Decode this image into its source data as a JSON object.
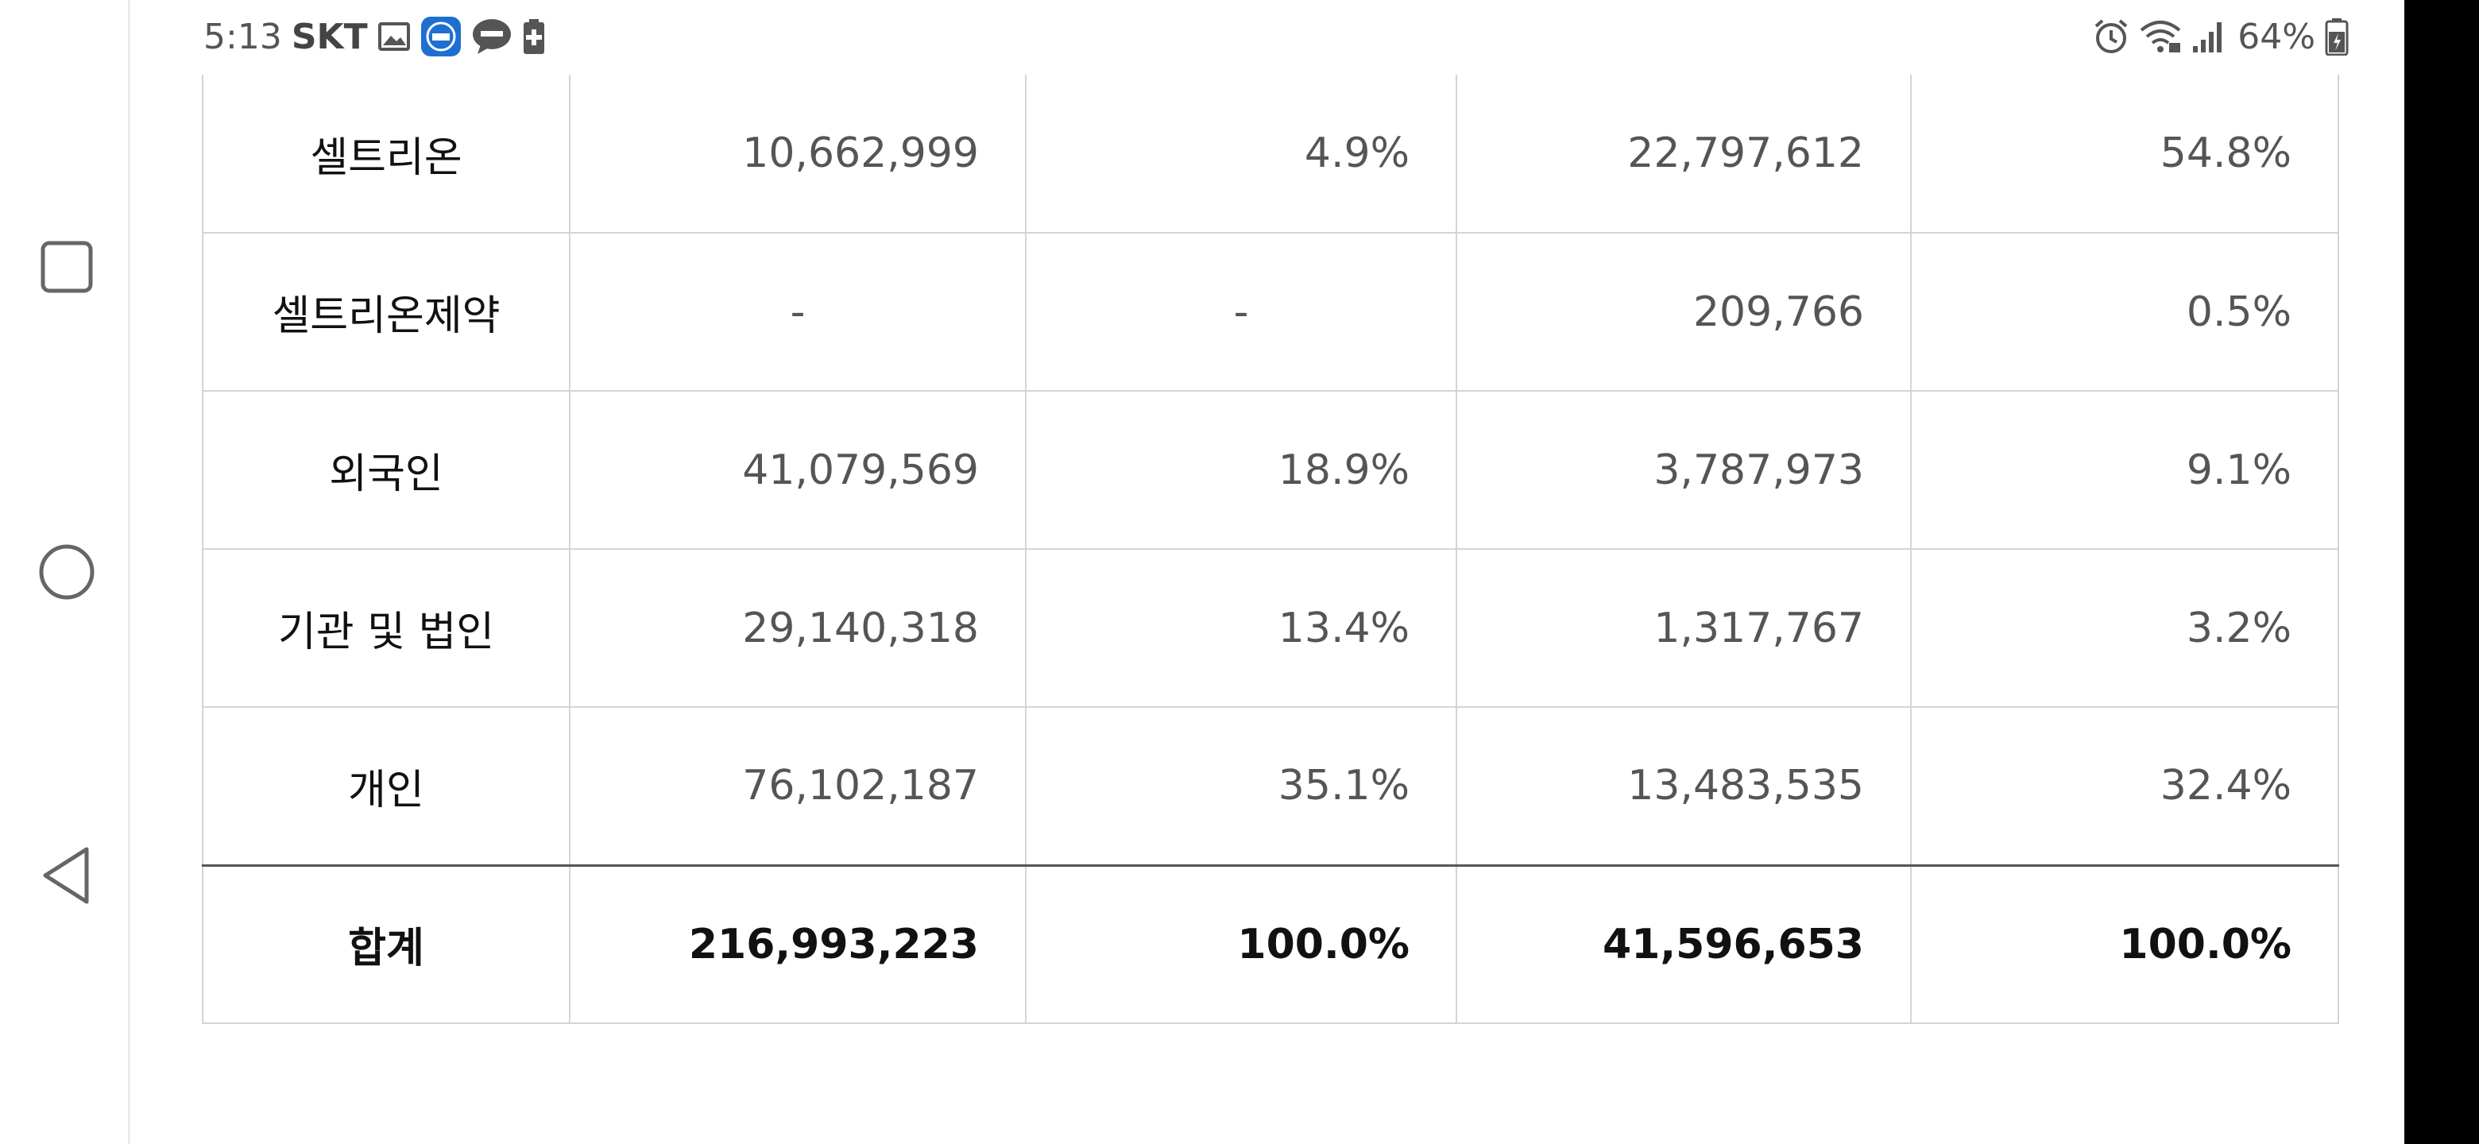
{
  "status_bar": {
    "time": "5:13",
    "carrier": "SKT",
    "battery": "64%",
    "left_icons": [
      "gallery-icon",
      "mobile-guard-icon",
      "talk-icon",
      "battery-saver-icon"
    ],
    "right_icons": [
      "alarm-icon",
      "wifi-icon",
      "signal-icon",
      "battery-icon"
    ]
  },
  "nav": {
    "buttons": [
      "recent-apps-button",
      "home-button",
      "back-button"
    ]
  },
  "table": {
    "rows": [
      {
        "label": "셀트리온",
        "v1": "10,662,999",
        "p1": "4.9%",
        "v2": "22,797,612",
        "p2": "54.8%"
      },
      {
        "label": "셀트리온제약",
        "v1": "-",
        "p1": "-",
        "v2": "209,766",
        "p2": "0.5%"
      },
      {
        "label": "외국인",
        "v1": "41,079,569",
        "p1": "18.9%",
        "v2": "3,787,973",
        "p2": "9.1%"
      },
      {
        "label": "기관 및 법인",
        "v1": "29,140,318",
        "p1": "13.4%",
        "v2": "1,317,767",
        "p2": "3.2%"
      },
      {
        "label": "개인",
        "v1": "76,102,187",
        "p1": "35.1%",
        "v2": "13,483,535",
        "p2": "32.4%"
      }
    ],
    "total": {
      "label": "합계",
      "v1": "216,993,223",
      "p1": "100.0%",
      "v2": "41,596,653",
      "p2": "100.0%"
    }
  }
}
